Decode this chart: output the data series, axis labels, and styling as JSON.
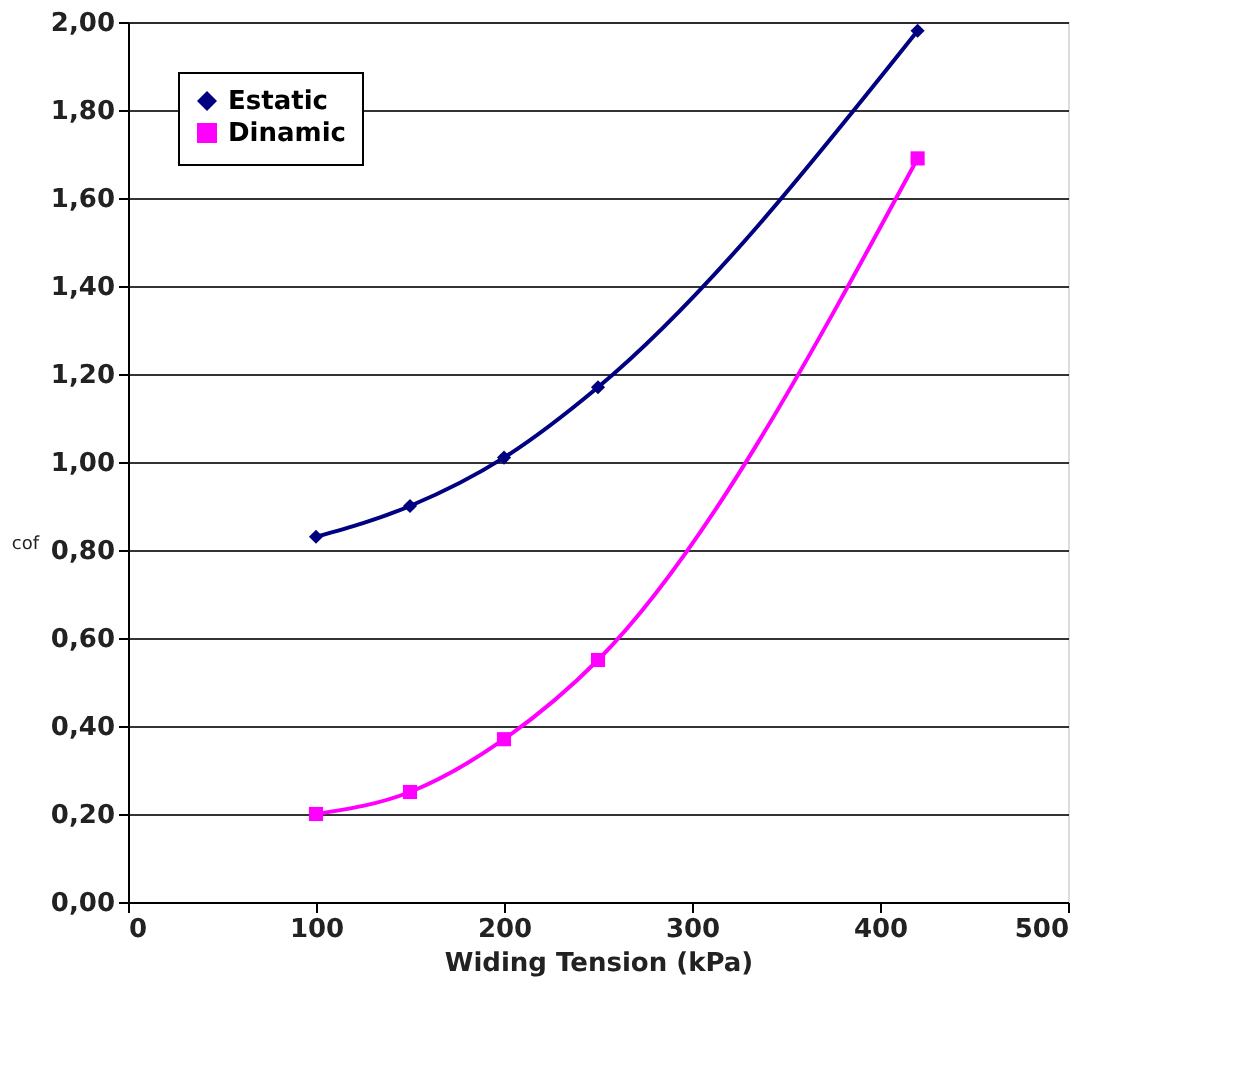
{
  "chart_data": {
    "type": "line",
    "xlabel": "Widing  Tension (kPa)",
    "ylabel": "cof",
    "x": [
      100,
      150,
      200,
      250,
      420
    ],
    "series": [
      {
        "name": "Estatic",
        "color": "#000080",
        "marker": "diamond",
        "values": [
          0.83,
          0.9,
          1.01,
          1.17,
          1.98
        ]
      },
      {
        "name": "Dinamic",
        "color": "#ff00ff",
        "marker": "square",
        "values": [
          0.2,
          0.25,
          0.37,
          0.55,
          1.69
        ]
      }
    ],
    "xlim": [
      0,
      500
    ],
    "xticks": [
      0,
      100,
      200,
      300,
      400,
      500
    ],
    "ylim": [
      0,
      2
    ],
    "yticks": [
      {
        "value": 0,
        "label": "0,00"
      },
      {
        "value": 0.2,
        "label": "0,20"
      },
      {
        "value": 0.4,
        "label": "0,40"
      },
      {
        "value": 0.6,
        "label": "0,60"
      },
      {
        "value": 0.8,
        "label": "0,80"
      },
      {
        "value": 1.0,
        "label": "1,00"
      },
      {
        "value": 1.2,
        "label": "1,20"
      },
      {
        "value": 1.4,
        "label": "1,40"
      },
      {
        "value": 1.6,
        "label": "1,60"
      },
      {
        "value": 1.8,
        "label": "1,80"
      },
      {
        "value": 2.0,
        "label": "2,00"
      }
    ],
    "grid": "y",
    "legend": "top left",
    "line_style": "solid"
  }
}
